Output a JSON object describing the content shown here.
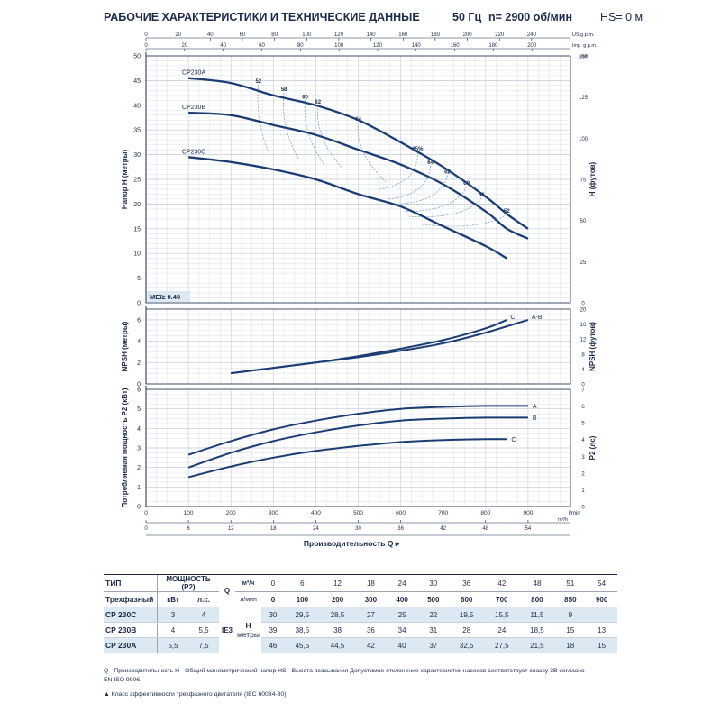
{
  "header": {
    "title": "РАБОЧИЕ ХАРАКТЕРИСТИКИ И ТЕХНИЧЕСКИЕ ДАННЫЕ",
    "freq": "50 Гц",
    "speed": "n= 2900 об/мин",
    "hs": "HS= 0 м"
  },
  "colors": {
    "curve": "#1c3d73",
    "grid": "#c4ccd6",
    "axis": "#1c2b4a",
    "eff": "#6f9bbf",
    "shade": "#dde9f2"
  },
  "chart_data": [
    {
      "type": "line",
      "name": "head",
      "ylabel": "Напор H (метры)",
      "ylabel_right": "H (футов)",
      "ylim": [
        0,
        50
      ],
      "yticks": [
        0,
        5,
        10,
        15,
        20,
        25,
        30,
        35,
        40,
        45,
        50
      ],
      "yticks_right": [
        0,
        25,
        50,
        75,
        100,
        125,
        150
      ],
      "right_unit": "feet",
      "xlim_lmin": [
        0,
        1000
      ],
      "top_axis_usgpm": {
        "unit": "US g.p.m.",
        "ticks": [
          0,
          20,
          40,
          60,
          80,
          100,
          120,
          140,
          160,
          180,
          200,
          220,
          240
        ]
      },
      "top_axis_impgpm": {
        "unit": "Imp. g.p.m.",
        "ticks": [
          0,
          20,
          40,
          60,
          80,
          100,
          120,
          140,
          160,
          180,
          200
        ]
      },
      "badge": "MEI≥ 0.40",
      "series": [
        {
          "name": "CP230A",
          "x": [
            100,
            200,
            300,
            400,
            500,
            600,
            700,
            800,
            850,
            900
          ],
          "values": [
            45.5,
            44.5,
            42,
            40,
            37,
            32.5,
            27.5,
            21.5,
            18,
            15
          ]
        },
        {
          "name": "CP230B",
          "x": [
            100,
            200,
            300,
            400,
            500,
            600,
            700,
            800,
            850,
            900
          ],
          "values": [
            38.5,
            38,
            36,
            34,
            31,
            28,
            24,
            18.5,
            15,
            13
          ]
        },
        {
          "name": "CP230C",
          "x": [
            100,
            200,
            300,
            400,
            500,
            600,
            700,
            800,
            850
          ],
          "values": [
            29.5,
            28.5,
            27,
            25,
            22,
            19.5,
            15.5,
            11.5,
            9
          ]
        }
      ],
      "efficiency_labels": [
        {
          "text": "52",
          "x": 265,
          "y": 44.2
        },
        {
          "text": "58",
          "x": 325,
          "y": 42.5
        },
        {
          "text": "60",
          "x": 375,
          "y": 41.0
        },
        {
          "text": "62",
          "x": 405,
          "y": 40.0
        },
        {
          "text": "64",
          "x": 500,
          "y": 36.5
        },
        {
          "text": "65%",
          "x": 640,
          "y": 30.5
        },
        {
          "text": "64",
          "x": 670,
          "y": 27.7
        },
        {
          "text": "62",
          "x": 710,
          "y": 25.8
        },
        {
          "text": "60",
          "x": 755,
          "y": 23.5
        },
        {
          "text": "58",
          "x": 790,
          "y": 21.2
        },
        {
          "text": "52",
          "x": 850,
          "y": 17.9
        }
      ]
    },
    {
      "type": "line",
      "name": "npsh",
      "ylabel": "NPSH (метры)",
      "ylabel_right": "NPSH (футов)",
      "ylim": [
        0,
        7
      ],
      "yticks": [
        0,
        2,
        4,
        6
      ],
      "yticks_right": [
        0,
        4,
        8,
        12,
        16,
        20
      ],
      "series": [
        {
          "name": "C",
          "x": [
            200,
            300,
            400,
            500,
            600,
            700,
            800,
            850
          ],
          "values": [
            1.0,
            1.5,
            2.0,
            2.6,
            3.3,
            4.1,
            5.2,
            6.0
          ]
        },
        {
          "name": "A-B",
          "x": [
            200,
            300,
            400,
            500,
            600,
            700,
            800,
            900
          ],
          "values": [
            1.0,
            1.5,
            2.0,
            2.5,
            3.1,
            3.8,
            4.8,
            6.0
          ]
        }
      ]
    },
    {
      "type": "line",
      "name": "power",
      "ylabel": "Потребляемая мощность P2 (кВт)",
      "ylabel_right": "P2 (лс)",
      "ylim": [
        0,
        6
      ],
      "yticks": [
        0,
        1,
        2,
        3,
        4,
        5,
        6
      ],
      "yticks_right": [
        0,
        1,
        2,
        3,
        4,
        5,
        6,
        7
      ],
      "xlabel": "Производительность Q",
      "x_unit_bottom": "l/min",
      "x_unit_m3h": "m³/h",
      "xticks_lmin": [
        0,
        100,
        200,
        300,
        400,
        500,
        600,
        700,
        800,
        900
      ],
      "xticks_m3h": [
        0,
        6,
        12,
        18,
        24,
        30,
        36,
        42,
        48,
        54
      ],
      "series": [
        {
          "name": "A",
          "x": [
            100,
            200,
            300,
            400,
            500,
            600,
            700,
            800,
            900
          ],
          "values": [
            2.65,
            3.35,
            3.95,
            4.4,
            4.75,
            5.0,
            5.1,
            5.15,
            5.15
          ]
        },
        {
          "name": "B",
          "x": [
            100,
            200,
            300,
            400,
            500,
            600,
            700,
            800,
            900
          ],
          "values": [
            2.0,
            2.75,
            3.35,
            3.8,
            4.15,
            4.4,
            4.5,
            4.55,
            4.55
          ]
        },
        {
          "name": "C",
          "x": [
            100,
            200,
            300,
            400,
            500,
            600,
            700,
            800,
            850
          ],
          "values": [
            1.5,
            2.05,
            2.5,
            2.85,
            3.1,
            3.3,
            3.4,
            3.45,
            3.45
          ]
        }
      ]
    }
  ],
  "table": {
    "h_type": "ТИП",
    "h_power": "МОЩНОСТЬ (P2)",
    "h_three": "Трехфазный",
    "h_kw": "кВт",
    "h_hp": "л.с.",
    "h_m3h": "м³/ч",
    "h_lmin": "л/мин",
    "q": "Q",
    "ie": "IE3",
    "h": "H",
    "meters": "метры",
    "q_m3h": [
      "0",
      "6",
      "12",
      "18",
      "24",
      "30",
      "36",
      "42",
      "48",
      "51",
      "54"
    ],
    "q_lmin": [
      "0",
      "100",
      "200",
      "300",
      "400",
      "500",
      "600",
      "700",
      "800",
      "850",
      "900"
    ],
    "rows": [
      {
        "model": "CP 230C",
        "kw": "3",
        "hp": "4",
        "h": [
          "30",
          "29,5",
          "28,5",
          "27",
          "25",
          "22",
          "19,5",
          "15,5",
          "11,5",
          "9",
          ""
        ]
      },
      {
        "model": "CP 230B",
        "kw": "4",
        "hp": "5,5",
        "h": [
          "39",
          "38,5",
          "38",
          "36",
          "34",
          "31",
          "28",
          "24",
          "18,5",
          "15",
          "13"
        ]
      },
      {
        "model": "CP 230A",
        "kw": "5,5",
        "hp": "7,5",
        "h": [
          "46",
          "45,5",
          "44,5",
          "42",
          "40",
          "37",
          "32,5",
          "27,5",
          "21,5",
          "18",
          "15"
        ]
      }
    ]
  },
  "footnotes": {
    "line1": "Q - Производительность   H - Общий манометрический напор   HS - Высота всасывания  Допустимое отклонение характеристик насосов соответствует классу 3B согласно",
    "line2": "EN ISO 9906.",
    "line3": "▲  Класс эффективности трехфазного двигателя (IEC 60034-30)"
  }
}
